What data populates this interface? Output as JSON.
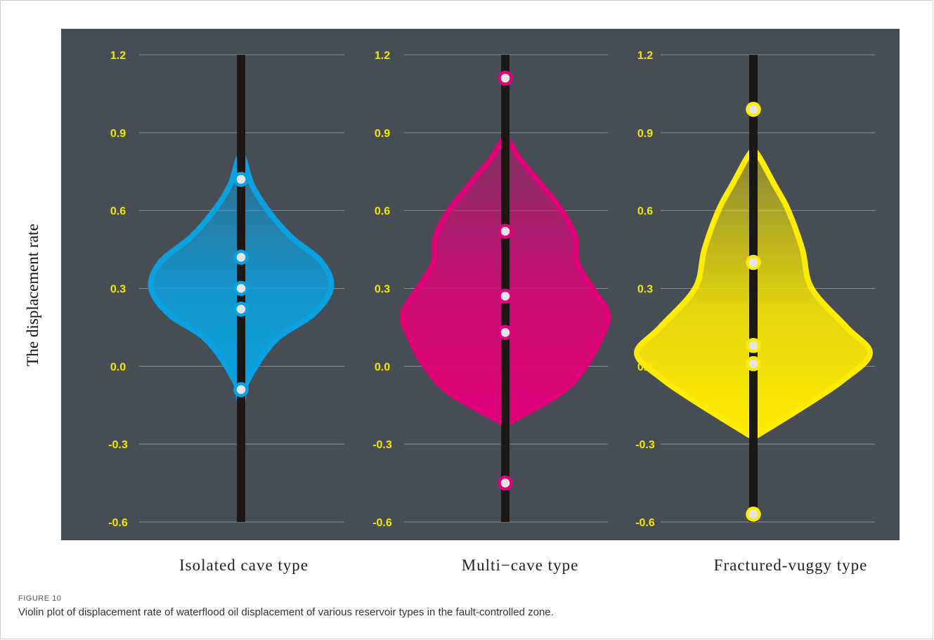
{
  "chart_data": {
    "type": "violin",
    "ylabel": "The displacement rate",
    "y_ticks": [
      "1.2",
      "0.9",
      "0.6",
      "0.3",
      "0.0",
      "-0.3",
      "-0.6"
    ],
    "ylim": [
      -0.6,
      1.2
    ],
    "grid": true,
    "background_color": "#474d54",
    "tick_label_color": "#f5e800",
    "series": [
      {
        "name": "Isolated cave type",
        "color": "#0aa1e0",
        "points": [
          0.72,
          0.42,
          0.3,
          0.22,
          -0.09
        ],
        "density": [
          [
            -0.13,
            0.02
          ],
          [
            -0.05,
            0.08
          ],
          [
            0.1,
            0.38
          ],
          [
            0.2,
            0.8
          ],
          [
            0.3,
            1.0
          ],
          [
            0.4,
            0.9
          ],
          [
            0.5,
            0.55
          ],
          [
            0.6,
            0.3
          ],
          [
            0.7,
            0.12
          ],
          [
            0.8,
            0.03
          ]
        ]
      },
      {
        "name": "Multi−cave type",
        "color": "#e0007a",
        "points": [
          1.11,
          0.52,
          0.27,
          0.13,
          -0.45
        ],
        "density": [
          [
            -0.22,
            0.02
          ],
          [
            -0.1,
            0.55
          ],
          [
            0.0,
            0.78
          ],
          [
            0.1,
            0.92
          ],
          [
            0.2,
            1.0
          ],
          [
            0.3,
            0.85
          ],
          [
            0.4,
            0.7
          ],
          [
            0.5,
            0.68
          ],
          [
            0.6,
            0.55
          ],
          [
            0.7,
            0.35
          ],
          [
            0.8,
            0.14
          ],
          [
            0.87,
            0.03
          ]
        ]
      },
      {
        "name": "Fractured-vuggy type",
        "color": "#ffec00",
        "points": [
          0.99,
          0.4,
          0.08,
          0.01,
          -0.57
        ],
        "density": [
          [
            -0.27,
            0.02
          ],
          [
            -0.15,
            0.45
          ],
          [
            -0.05,
            0.78
          ],
          [
            0.05,
            1.0
          ],
          [
            0.15,
            0.8
          ],
          [
            0.3,
            0.5
          ],
          [
            0.45,
            0.42
          ],
          [
            0.6,
            0.3
          ],
          [
            0.7,
            0.18
          ],
          [
            0.82,
            0.03
          ]
        ]
      }
    ]
  },
  "caption": {
    "figure_number": "FIGURE 10",
    "text": "Violin plot of displacement rate of waterflood oil displacement of various reservoir types in the fault-controlled zone."
  }
}
